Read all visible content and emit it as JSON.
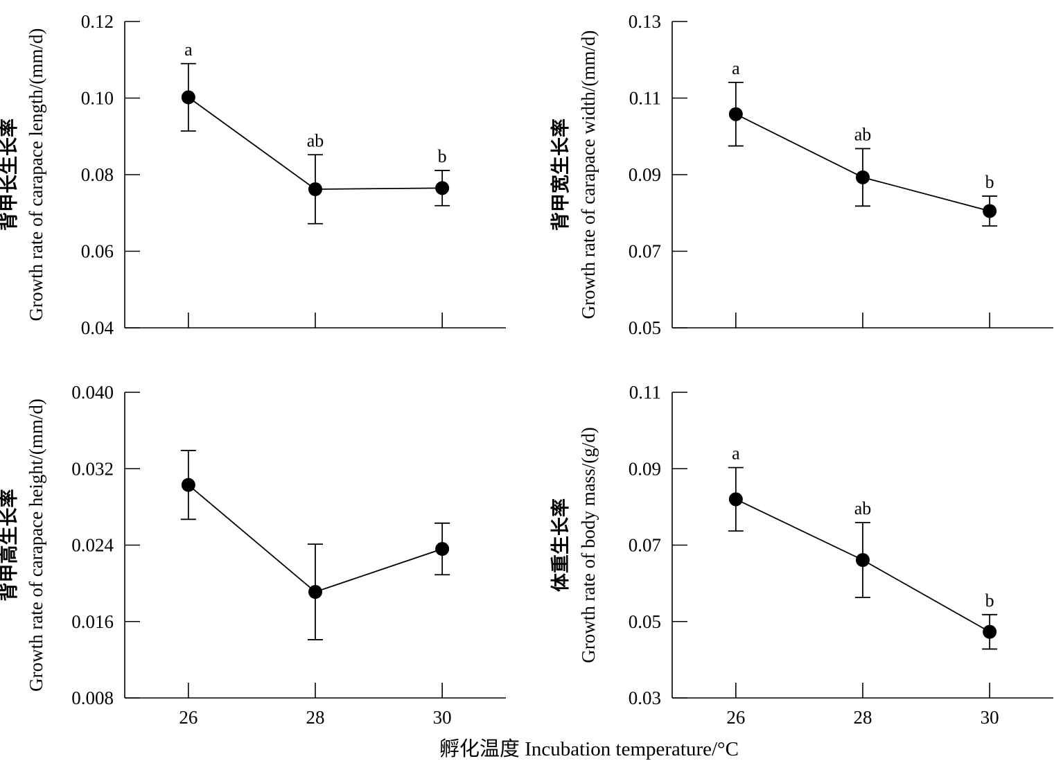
{
  "figure": {
    "xaxis_title": "孵化温度 Incubation temperature/°C"
  },
  "chart_data": [
    {
      "type": "line",
      "ylabel_cn": "背甲长生长率",
      "ylabel_en": "Growth rate of carapace length/(mm/d)",
      "x": [
        26,
        28,
        30
      ],
      "x_tick_labels": [
        "26",
        "28",
        "30"
      ],
      "values": [
        0.1002,
        0.0762,
        0.0765
      ],
      "error": [
        0.0088,
        0.009,
        0.0046
      ],
      "significance": [
        "a",
        "ab",
        "b"
      ],
      "ylim": [
        0.04,
        0.12
      ],
      "yticks": [
        0.04,
        0.06,
        0.08,
        0.1,
        0.12
      ],
      "ytick_labels": [
        "0.04",
        "0.06",
        "0.08",
        "0.10",
        "0.12"
      ],
      "show_x_tick_labels": false,
      "grid": false
    },
    {
      "type": "line",
      "ylabel_cn": "背甲宽生长率",
      "ylabel_en": "Growth rate of carapace width/(mm/d)",
      "x": [
        26,
        28,
        30
      ],
      "x_tick_labels": [
        "26",
        "28",
        "30"
      ],
      "values": [
        0.1058,
        0.0893,
        0.0805
      ],
      "error": [
        0.0083,
        0.0075,
        0.0039
      ],
      "significance": [
        "a",
        "ab",
        "b"
      ],
      "ylim": [
        0.05,
        0.13
      ],
      "yticks": [
        0.05,
        0.07,
        0.09,
        0.11,
        0.13
      ],
      "ytick_labels": [
        "0.05",
        "0.07",
        "0.09",
        "0.11",
        "0.13"
      ],
      "show_x_tick_labels": false,
      "grid": false
    },
    {
      "type": "line",
      "ylabel_cn": "背甲高生长率",
      "ylabel_en": "Growth rate of carapace height/(mm/d)",
      "x": [
        26,
        28,
        30
      ],
      "x_tick_labels": [
        "26",
        "28",
        "30"
      ],
      "values": [
        0.0303,
        0.0191,
        0.0236
      ],
      "error": [
        0.0036,
        0.005,
        0.0027
      ],
      "significance": [
        "",
        "",
        ""
      ],
      "ylim": [
        0.008,
        0.04
      ],
      "yticks": [
        0.008,
        0.016,
        0.024,
        0.032,
        0.04
      ],
      "ytick_labels": [
        "0.008",
        "0.016",
        "0.024",
        "0.032",
        "0.040"
      ],
      "show_x_tick_labels": true,
      "grid": false
    },
    {
      "type": "line",
      "ylabel_cn": "体重生长率",
      "ylabel_en": "Growth rate of body mass/(g/d)",
      "x": [
        26,
        28,
        30
      ],
      "x_tick_labels": [
        "26",
        "28",
        "30"
      ],
      "values": [
        0.082,
        0.0661,
        0.0473
      ],
      "error": [
        0.0083,
        0.0098,
        0.0045
      ],
      "significance": [
        "a",
        "ab",
        "b"
      ],
      "ylim": [
        0.03,
        0.11
      ],
      "yticks": [
        0.03,
        0.05,
        0.07,
        0.09,
        0.11
      ],
      "ytick_labels": [
        "0.03",
        "0.05",
        "0.07",
        "0.09",
        "0.11"
      ],
      "show_x_tick_labels": true,
      "grid": false
    }
  ]
}
